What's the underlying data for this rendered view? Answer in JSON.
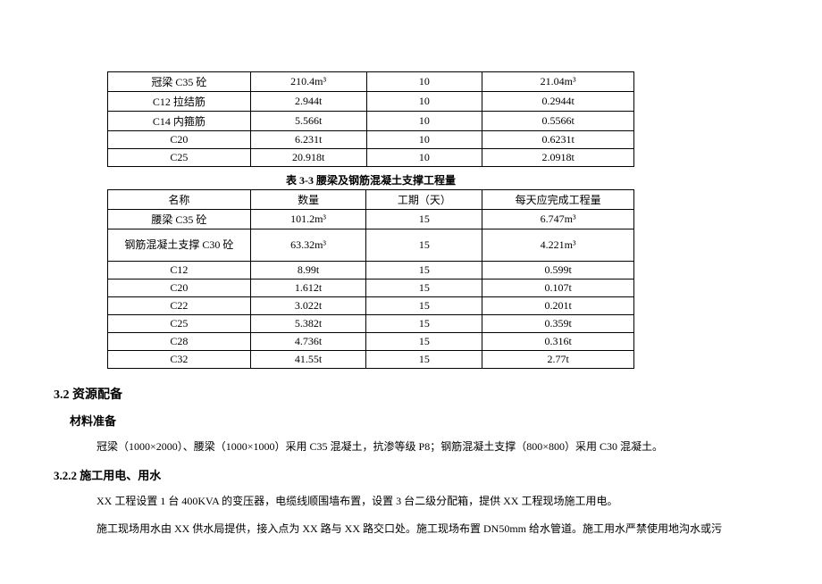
{
  "table1": {
    "rows": [
      {
        "name": "冠梁 C35 砼",
        "qty": "210.4m³",
        "days": "10",
        "daily": "21.04m³"
      },
      {
        "name": "C12 拉结筋",
        "qty": "2.944t",
        "days": "10",
        "daily": "0.2944t"
      },
      {
        "name": "C14 内箍筋",
        "qty": "5.566t",
        "days": "10",
        "daily": "0.5566t"
      },
      {
        "name": "C20",
        "qty": "6.231t",
        "days": "10",
        "daily": "0.6231t"
      },
      {
        "name": "C25",
        "qty": "20.918t",
        "days": "10",
        "daily": "2.0918t"
      }
    ]
  },
  "caption2": "表 3-3 腰梁及钢筋混凝土支撑工程量",
  "table2": {
    "header": {
      "name": "名称",
      "qty": "数量",
      "days": "工期（天）",
      "daily": "每天应完成工程量"
    },
    "rows": [
      {
        "name": "腰梁 C35 砼",
        "qty": "101.2m³",
        "days": "15",
        "daily": "6.747m³"
      },
      {
        "name": "钢筋混凝土支撑 C30 砼",
        "qty": "63.32m³",
        "days": "15",
        "daily": "4.221m³",
        "multiline": true
      },
      {
        "name": "C12",
        "qty": "8.99t",
        "days": "15",
        "daily": "0.599t"
      },
      {
        "name": "C20",
        "qty": "1.612t",
        "days": "15",
        "daily": "0.107t"
      },
      {
        "name": "C22",
        "qty": "3.022t",
        "days": "15",
        "daily": "0.201t"
      },
      {
        "name": "C25",
        "qty": "5.382t",
        "days": "15",
        "daily": "0.359t"
      },
      {
        "name": "C28",
        "qty": "4.736t",
        "days": "15",
        "daily": "0.316t"
      },
      {
        "name": "C32",
        "qty": "41.55t",
        "days": "15",
        "daily": "2.77t"
      }
    ]
  },
  "section32": "3.2 资源配备",
  "materials_heading": "材料准备",
  "materials_para": "冠梁（1000×2000）、腰梁（1000×1000）采用 C35 混凝土，抗渗等级 P8；钢筋混凝土支撑（800×800）采用 C30 混凝土。",
  "section322": "3.2.2 施工用电、用水",
  "power_para1": "XX 工程设置 1 台 400KVA 的变压器，电缆线顺围墙布置，设置 3 台二级分配箱，提供 XX 工程现场施工用电。",
  "power_para2": "施工现场用水由 XX 供水局提供，接入点为 XX 路与 XX 路交口处。施工现场布置 DN50mm 给水管道。施工用水严禁使用地沟水或污"
}
